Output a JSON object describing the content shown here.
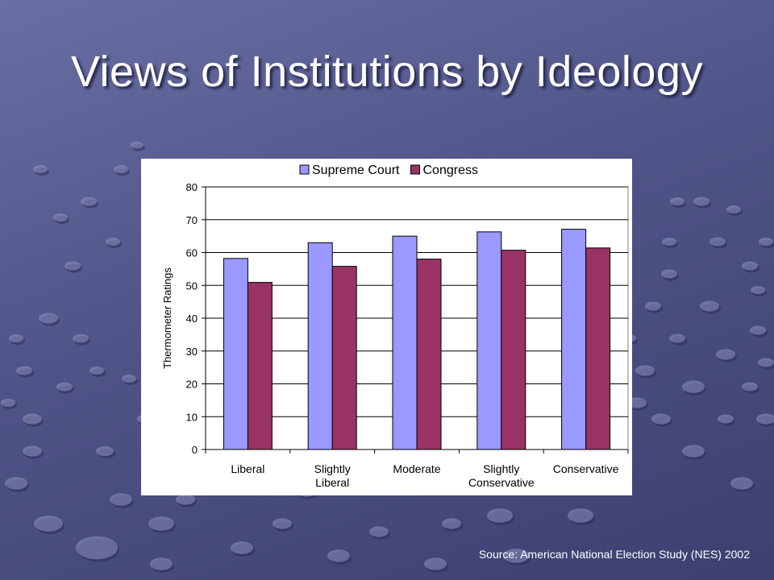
{
  "slide": {
    "title": "Views of Institutions by Ideology",
    "source": "Source: American National Election Study (NES) 2002"
  },
  "chart_data": {
    "type": "bar",
    "categories": [
      [
        "Liberal"
      ],
      [
        "Slightly",
        "Liberal"
      ],
      [
        "Moderate"
      ],
      [
        "Slightly",
        "Conservative"
      ],
      [
        "Conservative"
      ]
    ],
    "series": [
      {
        "name": "Supreme Court",
        "values": [
          58.2,
          63,
          65,
          66.3,
          67.1
        ],
        "color": "#9999ff"
      },
      {
        "name": "Congress",
        "values": [
          50.9,
          55.8,
          58,
          60.7,
          61.4
        ],
        "color": "#993366"
      }
    ],
    "ylabel": "Thermometer Ratings",
    "xlabel": "",
    "ylim": [
      0,
      80
    ],
    "yticks": [
      0,
      10,
      20,
      30,
      40,
      50,
      60,
      70,
      80
    ],
    "grid": true,
    "legend_position": "top"
  },
  "colors": {
    "background": "#4f5488",
    "title_text": "#ffffff",
    "plot_border": "#808080",
    "gridline": "#000000"
  }
}
